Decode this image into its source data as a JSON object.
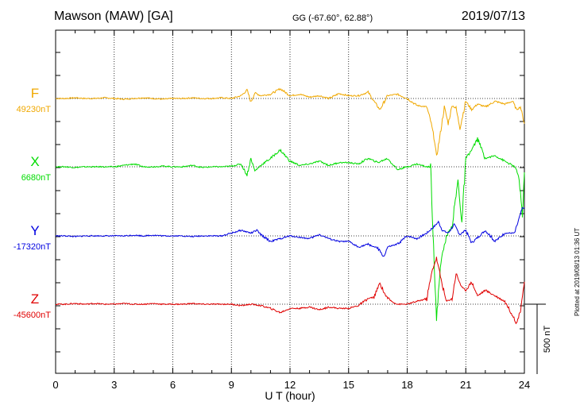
{
  "header": {
    "title": "Mawson (MAW)  [GA]",
    "coords": "GG (-67.60°,  62.88°)",
    "date": "2019/07/13",
    "plotted": "Plotted at 2019/08/13 01:36 UT"
  },
  "chart_data": {
    "type": "line",
    "xlabel": "U T (hour)",
    "xlim": [
      0,
      24
    ],
    "xticks": [
      "0",
      "3",
      "6",
      "9",
      "12",
      "15",
      "18",
      "21",
      "24"
    ],
    "scale_label": "500 nT",
    "scale_nT": 500,
    "grid": true,
    "series": [
      {
        "name": "F",
        "baseline_label": "49230nT",
        "color": "#f0a800",
        "x": [
          0,
          0.5,
          1,
          1.5,
          2,
          2.5,
          3,
          3.5,
          4,
          4.5,
          5,
          5.5,
          6,
          6.5,
          7,
          7.5,
          8,
          8.5,
          9,
          9.5,
          9.8,
          10,
          10.2,
          10.5,
          11,
          11.5,
          12,
          12.5,
          13,
          13.5,
          14,
          14.5,
          15,
          15.5,
          16,
          16.3,
          16.6,
          17,
          17.5,
          18,
          18.5,
          19,
          19.2,
          19.4,
          19.5,
          19.7,
          19.9,
          20.1,
          20.3,
          20.5,
          20.7,
          21,
          21.3,
          21.6,
          22,
          22.5,
          23,
          23.4,
          23.6,
          23.8,
          24
        ],
        "values": [
          0,
          0,
          5,
          0,
          0,
          5,
          0,
          -5,
          0,
          5,
          0,
          -5,
          0,
          0,
          5,
          0,
          0,
          5,
          0,
          20,
          60,
          -25,
          40,
          20,
          30,
          70,
          20,
          30,
          10,
          20,
          0,
          35,
          20,
          20,
          45,
          -20,
          -80,
          20,
          30,
          0,
          -50,
          -60,
          -160,
          -300,
          -420,
          -250,
          -60,
          -180,
          -50,
          -70,
          -210,
          -20,
          -80,
          -40,
          -60,
          -20,
          -40,
          -20,
          -80,
          -60,
          -180
        ]
      },
      {
        "name": "X",
        "baseline_label": "6680nT",
        "color": "#00dc00",
        "x": [
          0,
          0.5,
          1,
          1.5,
          2,
          2.5,
          3,
          3.5,
          4,
          4.5,
          5,
          5.5,
          6,
          6.5,
          7,
          7.5,
          8,
          8.5,
          9,
          9.5,
          9.8,
          10,
          10.2,
          10.5,
          11,
          11.5,
          12,
          12.5,
          13,
          13.5,
          14,
          14.5,
          15,
          15.5,
          16,
          16.5,
          17,
          17.5,
          18,
          18.5,
          19,
          19.2,
          19.35,
          19.5,
          19.7,
          20,
          20.3,
          20.6,
          20.8,
          21,
          21.3,
          21.6,
          22,
          22.5,
          23,
          23.5,
          23.7,
          23.9,
          24
        ],
        "values": [
          0,
          0,
          -5,
          0,
          0,
          0,
          0,
          10,
          20,
          0,
          0,
          5,
          0,
          0,
          10,
          -5,
          0,
          0,
          5,
          20,
          -60,
          60,
          -30,
          10,
          60,
          120,
          40,
          10,
          20,
          40,
          10,
          30,
          30,
          20,
          60,
          30,
          60,
          -20,
          0,
          20,
          0,
          0,
          -550,
          -1110,
          -700,
          -500,
          -420,
          -100,
          -400,
          60,
          120,
          200,
          60,
          80,
          40,
          0,
          -60,
          -350,
          -40
        ]
      },
      {
        "name": "Y",
        "baseline_label": "-17320nT",
        "color": "#0000e0",
        "x": [
          0,
          0.5,
          1,
          1.5,
          2,
          2.5,
          3,
          3.5,
          4,
          4.5,
          5,
          5.5,
          6,
          6.5,
          7,
          7.5,
          8,
          8.5,
          9,
          9.5,
          10,
          10.3,
          10.5,
          11,
          11.5,
          12,
          12.5,
          13,
          13.5,
          14,
          14.5,
          15,
          15.5,
          16,
          16.5,
          16.8,
          17,
          17.5,
          18,
          18.5,
          19,
          19.4,
          19.6,
          19.8,
          20.1,
          20.4,
          20.7,
          21,
          21.3,
          21.7,
          22,
          22.5,
          23,
          23.5,
          23.7,
          23.9,
          24
        ],
        "values": [
          0,
          0,
          -5,
          0,
          0,
          0,
          0,
          0,
          5,
          0,
          5,
          0,
          0,
          0,
          -5,
          0,
          0,
          0,
          20,
          40,
          20,
          40,
          10,
          -40,
          -20,
          0,
          -10,
          -20,
          10,
          -20,
          -40,
          -40,
          -80,
          -60,
          -90,
          -150,
          -80,
          -60,
          0,
          -20,
          20,
          70,
          100,
          40,
          20,
          80,
          10,
          40,
          -50,
          0,
          40,
          -40,
          20,
          20,
          110,
          200,
          200
        ]
      },
      {
        "name": "Z",
        "baseline_label": "-45600nT",
        "color": "#e00000",
        "x": [
          0,
          0.5,
          1,
          1.5,
          2,
          2.5,
          3,
          3.5,
          4,
          4.5,
          5,
          5.5,
          6,
          6.5,
          7,
          7.5,
          8,
          8.5,
          9,
          9.5,
          10,
          10.5,
          11,
          11.5,
          12,
          12.5,
          13,
          13.5,
          14,
          14.5,
          15,
          15.5,
          16,
          16.3,
          16.6,
          16.9,
          17.2,
          17.5,
          18,
          18.5,
          19,
          19.3,
          19.5,
          19.7,
          20,
          20.3,
          20.5,
          20.8,
          21,
          21.3,
          21.6,
          22,
          22.5,
          23,
          23.4,
          23.6,
          23.8,
          24
        ],
        "values": [
          0,
          0,
          5,
          0,
          5,
          0,
          0,
          5,
          0,
          0,
          5,
          0,
          0,
          0,
          5,
          0,
          0,
          0,
          0,
          -10,
          0,
          -10,
          -30,
          -60,
          -30,
          -30,
          -20,
          -40,
          -20,
          -30,
          -30,
          -10,
          40,
          50,
          150,
          60,
          20,
          0,
          0,
          20,
          40,
          250,
          330,
          200,
          20,
          40,
          220,
          120,
          100,
          160,
          60,
          100,
          60,
          20,
          -80,
          -140,
          -40,
          160
        ]
      }
    ]
  }
}
